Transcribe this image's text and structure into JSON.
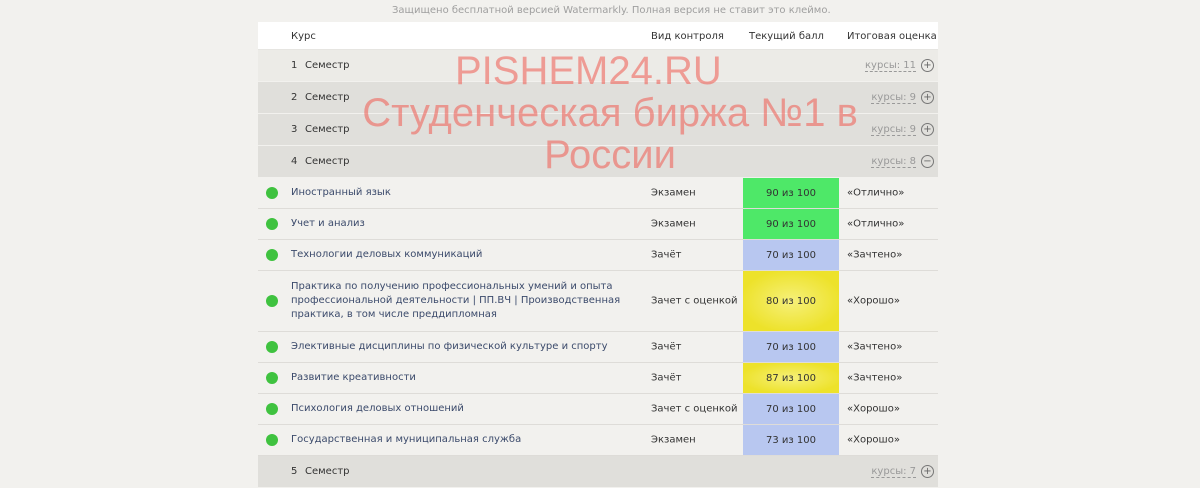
{
  "header": {
    "course": "Курс",
    "control": "Вид контроля",
    "score": "Текущий балл",
    "final": "Итоговая оценка"
  },
  "semesters": [
    {
      "num": "1",
      "label": "Семестр",
      "count": "курсы: 11",
      "expanded": false
    },
    {
      "num": "2",
      "label": "Семестр",
      "count": "курсы: 9",
      "expanded": false
    },
    {
      "num": "3",
      "label": "Семестр",
      "count": "курсы: 9",
      "expanded": false
    },
    {
      "num": "4",
      "label": "Семестр",
      "count": "курсы: 8",
      "expanded": true
    },
    {
      "num": "5",
      "label": "Семестр",
      "count": "курсы: 7",
      "expanded": false
    }
  ],
  "courses": [
    {
      "name": "Иностранный язык",
      "control": "Экзамен",
      "score": "90 из 100",
      "final": "«Отлично»",
      "color": "#4ee868"
    },
    {
      "name": "Учет и анализ",
      "control": "Экзамен",
      "score": "90 из 100",
      "final": "«Отлично»",
      "color": "#4ee868"
    },
    {
      "name": "Технологии деловых коммуникаций",
      "control": "Зачёт",
      "score": "70 из 100",
      "final": "«Зачтено»",
      "color": "#b8c7f0"
    },
    {
      "name": "Практика по получению профессиональных умений и опыта профессиональной деятельности | ПП.ВЧ | Производственная практика, в том числе преддипломная",
      "control": "Зачет с оценкой",
      "score": "80 из 100",
      "final": "«Хорошо»",
      "color": "#ede22a"
    },
    {
      "name": "Элективные дисциплины по физической культуре и спорту",
      "control": "Зачёт",
      "score": "70 из 100",
      "final": "«Зачтено»",
      "color": "#b8c7f0"
    },
    {
      "name": "Развитие креативности",
      "control": "Зачёт",
      "score": "87 из 100",
      "final": "«Зачтено»",
      "color": "#ede22a"
    },
    {
      "name": "Психология деловых отношений",
      "control": "Зачет с оценкой",
      "score": "70 из 100",
      "final": "«Хорошо»",
      "color": "#b8c7f0"
    },
    {
      "name": "Государственная и муниципальная служба",
      "control": "Экзамен",
      "score": "73 из 100",
      "final": "«Хорошо»",
      "color": "#b8c7f0"
    }
  ],
  "watermark": {
    "line1": "PISHEM24.RU",
    "line2": "Студенческая биржа №1 в России",
    "footer": "Защищено бесплатной версией Watermarkly. Полная версия не ставит это клеймо."
  }
}
